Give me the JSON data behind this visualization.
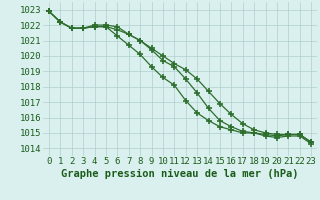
{
  "xlabel": "Graphe pression niveau de la mer (hPa)",
  "x": [
    0,
    1,
    2,
    3,
    4,
    5,
    6,
    7,
    8,
    9,
    10,
    11,
    12,
    13,
    14,
    15,
    16,
    17,
    18,
    19,
    20,
    21,
    22,
    23
  ],
  "line1": [
    1022.9,
    1022.2,
    1021.8,
    1021.8,
    1021.9,
    1021.9,
    1021.7,
    1021.4,
    1021.0,
    1020.4,
    1019.7,
    1019.3,
    1018.5,
    1017.6,
    1016.6,
    1015.8,
    1015.4,
    1015.1,
    1015.0,
    1014.9,
    1014.8,
    1014.9,
    1014.9,
    1014.4
  ],
  "line2": [
    1022.9,
    1022.2,
    1021.8,
    1021.8,
    1021.9,
    1021.9,
    1021.3,
    1020.7,
    1020.1,
    1019.3,
    1018.6,
    1018.1,
    1017.1,
    1016.3,
    1015.8,
    1015.4,
    1015.2,
    1015.0,
    1015.0,
    1014.8,
    1014.7,
    1014.8,
    1014.8,
    1014.3
  ],
  "line3": [
    1022.9,
    1022.2,
    1021.8,
    1021.8,
    1022.0,
    1022.0,
    1021.9,
    1021.4,
    1021.0,
    1020.5,
    1020.0,
    1019.5,
    1019.1,
    1018.5,
    1017.7,
    1016.9,
    1016.2,
    1015.6,
    1015.2,
    1015.0,
    1014.9,
    1014.9,
    1014.9,
    1014.4
  ],
  "ylim": [
    1013.5,
    1023.5
  ],
  "yticks": [
    1014,
    1015,
    1016,
    1017,
    1018,
    1019,
    1020,
    1021,
    1022,
    1023
  ],
  "line_color": "#2d6e2d",
  "marker": "+",
  "marker_size": 4,
  "marker_lw": 1.2,
  "bg_color": "#daf0ee",
  "grid_color": "#b0cece",
  "label_color": "#1a5c1a",
  "tick_color": "#1a5c1a",
  "xlabel_fontsize": 7.5,
  "tick_fontsize": 6.5,
  "linewidth": 0.9
}
